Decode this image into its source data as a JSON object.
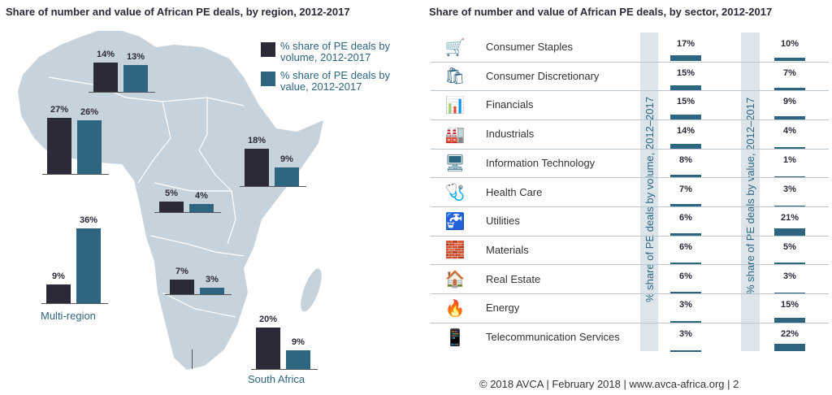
{
  "colors": {
    "volume": "#2b2a38",
    "value": "#2e6580",
    "map": "#c7d3dc",
    "band": "#dde5ea"
  },
  "chart_data": [
    {
      "type": "bar",
      "title": "Share of number and value of African PE deals, by region, 2012-2017",
      "legend": [
        "% share of PE deals by volume, 2012-2017",
        "% share of PE deals by value, 2012-2017"
      ],
      "legend_position": "top-right",
      "groups": [
        {
          "label": "",
          "volume": 14,
          "value": 13
        },
        {
          "label": "",
          "volume": 27,
          "value": 26
        },
        {
          "label": "",
          "volume": 18,
          "value": 9
        },
        {
          "label": "",
          "volume": 5,
          "value": 4
        },
        {
          "label": "",
          "volume": 7,
          "value": 3
        },
        {
          "label": "Multi-region",
          "volume": 9,
          "value": 36
        },
        {
          "label": "South Africa",
          "volume": 20,
          "value": 9
        }
      ]
    },
    {
      "type": "bar",
      "title": "Share of number and value of African PE deals, by sector, 2012-2017",
      "series_labels": [
        "% share of PE deals by volume, 2012–2017",
        "% share of PE deals by value, 2012–2017"
      ],
      "rows": [
        {
          "sector": "Consumer Staples",
          "icon": "shopping-cart-icon",
          "glyph": "🛒",
          "volume": 17,
          "value": 10
        },
        {
          "sector": "Consumer Discretionary",
          "icon": "shopping-bag-icon",
          "glyph": "🛍",
          "volume": 15,
          "value": 7
        },
        {
          "sector": "Financials",
          "icon": "bar-chart-icon",
          "glyph": "📊",
          "volume": 15,
          "value": 9
        },
        {
          "sector": "Industrials",
          "icon": "buildings-icon",
          "glyph": "🏭",
          "volume": 14,
          "value": 4
        },
        {
          "sector": "Information Technology",
          "icon": "server-icon",
          "glyph": "🖥",
          "volume": 8,
          "value": 1
        },
        {
          "sector": "Health Care",
          "icon": "stethoscope-icon",
          "glyph": "🩺",
          "volume": 7,
          "value": 3
        },
        {
          "sector": "Utilities",
          "icon": "tap-icon",
          "glyph": "🚰",
          "volume": 6,
          "value": 21
        },
        {
          "sector": "Materials",
          "icon": "bricks-icon",
          "glyph": "🧱",
          "volume": 6,
          "value": 5
        },
        {
          "sector": "Real Estate",
          "icon": "house-icon",
          "glyph": "🏠",
          "volume": 6,
          "value": 3
        },
        {
          "sector": "Energy",
          "icon": "flame-icon",
          "glyph": "🔥",
          "volume": 3,
          "value": 15
        },
        {
          "sector": "Telecommunication Services",
          "icon": "phone-icon",
          "glyph": "📱",
          "volume": 3,
          "value": 22
        }
      ]
    }
  ],
  "footer": "© 2018 AVCA  |  February 2018  |  www.avca-africa.org  |  2"
}
